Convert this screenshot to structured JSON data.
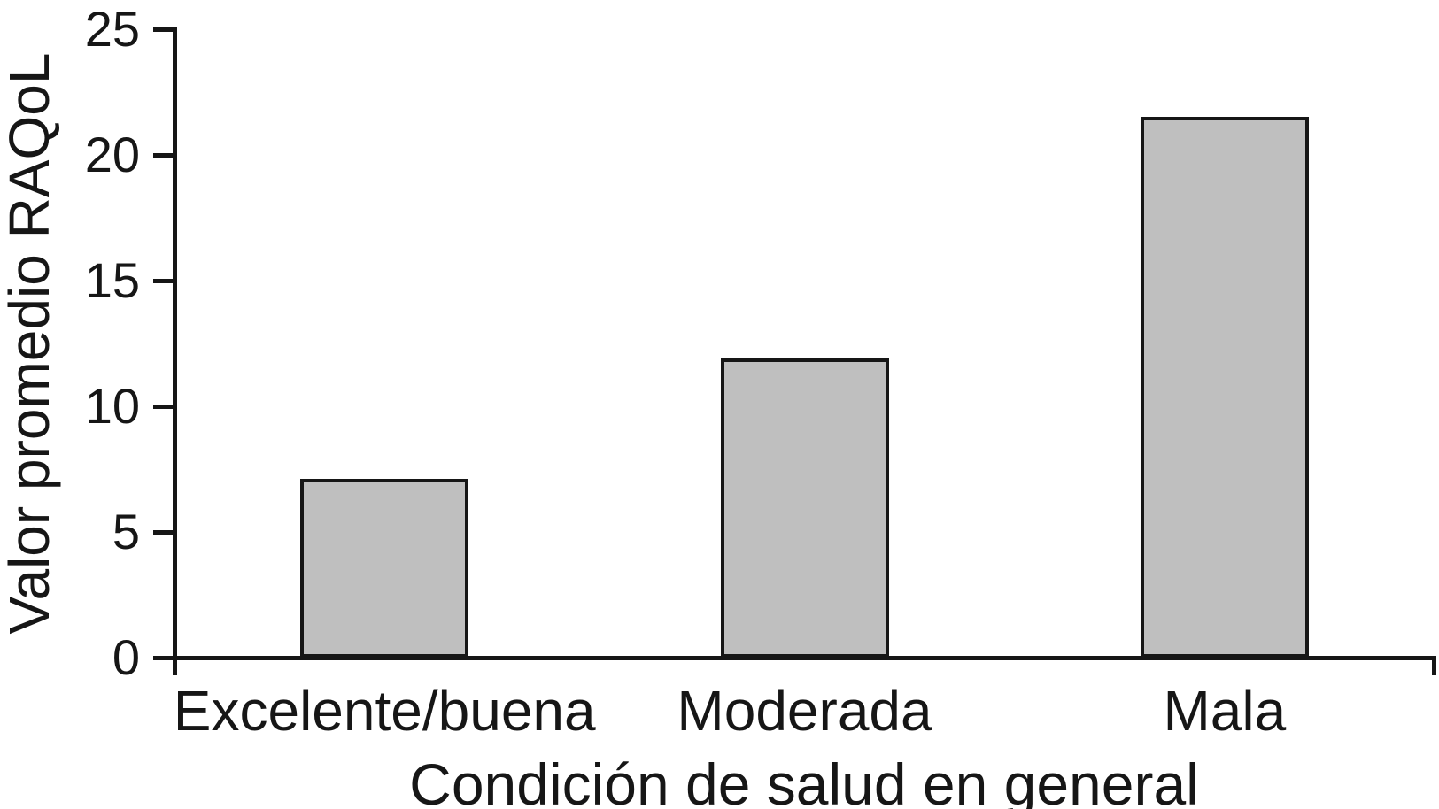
{
  "chart_data": {
    "type": "bar",
    "categories": [
      "Excelente/buena",
      "Moderada",
      "Mala"
    ],
    "values": [
      7.1,
      11.9,
      21.5
    ],
    "title": "",
    "xlabel": "Condición de salud en general",
    "ylabel": "Valor promedio RAQoL",
    "ylim": [
      0,
      25
    ],
    "yticks": [
      0,
      5,
      10,
      15,
      20,
      25
    ],
    "ytick_labels": [
      "0",
      "5",
      "10",
      "15",
      "20",
      "25"
    ],
    "grid": false,
    "legend_position": "none",
    "colors": {
      "bar_fill": "#bfbfbf",
      "bar_border": "#161616",
      "axis": "#161616",
      "text": "#161616",
      "background": "#ffffff"
    }
  }
}
